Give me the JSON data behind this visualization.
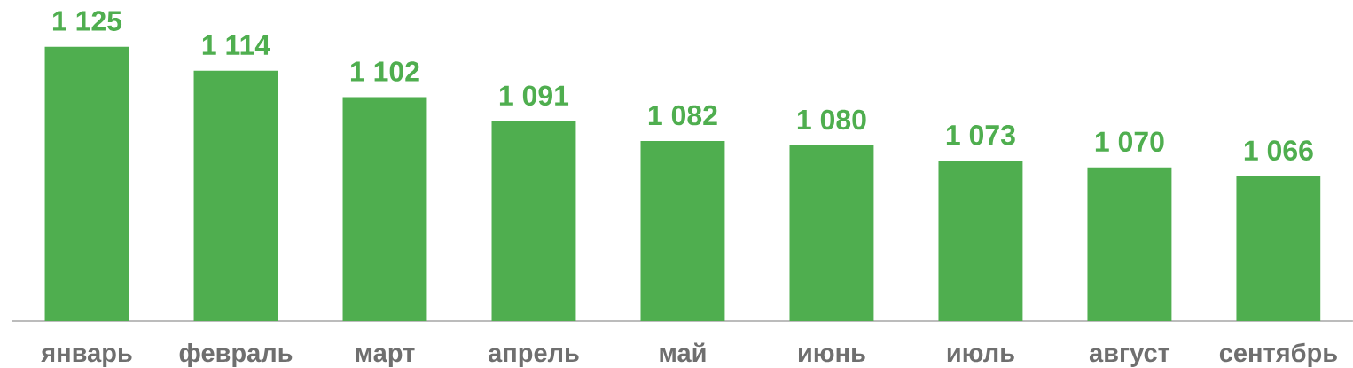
{
  "chart_data": {
    "type": "bar",
    "categories": [
      "январь",
      "февраль",
      "март",
      "апрель",
      "май",
      "июнь",
      "июль",
      "август",
      "сентябрь"
    ],
    "values": [
      1125,
      1114,
      1102,
      1091,
      1082,
      1080,
      1073,
      1070,
      1066
    ],
    "value_labels": [
      "1 125",
      "1 114",
      "1 102",
      "1 091",
      "1 082",
      "1 080",
      "1 073",
      "1 070",
      "1 066"
    ],
    "color": "#4fae4f",
    "ylim": [
      1000,
      1125
    ],
    "tick_labels": "x"
  }
}
